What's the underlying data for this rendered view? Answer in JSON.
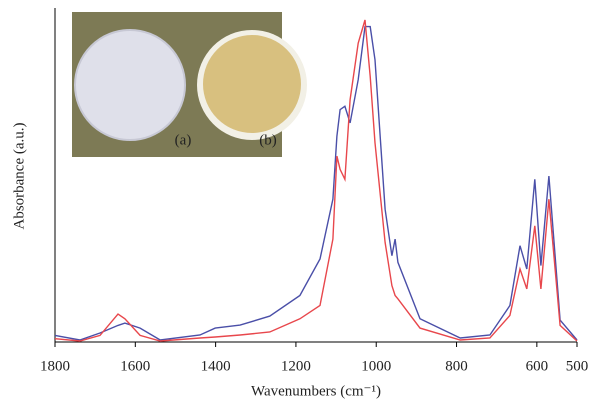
{
  "chart_data": {
    "type": "line",
    "y_label": "Absorbance (a.u.)",
    "x_label": "Wavenumbers (cm⁻¹)",
    "annotations": [
      "(a)",
      "(b)"
    ],
    "x": [
      1800,
      1738,
      1688,
      1643,
      1626,
      1588,
      1538,
      1439,
      1401,
      1339,
      1265,
      1190,
      1140,
      1108,
      1098,
      1090,
      1078,
      1065,
      1045,
      1028,
      1015,
      1003,
      978,
      961,
      953,
      946,
      891,
      791,
      717,
      667,
      642,
      625,
      605,
      590,
      570,
      542,
      500
    ],
    "series": [
      {
        "color": "#4a4fa8",
        "values": [
          0.02,
          0.006,
          0.027,
          0.05,
          0.057,
          0.042,
          0.006,
          0.021,
          0.042,
          0.051,
          0.078,
          0.14,
          0.25,
          0.43,
          0.62,
          0.7,
          0.71,
          0.66,
          0.79,
          0.95,
          0.95,
          0.85,
          0.4,
          0.26,
          0.31,
          0.24,
          0.07,
          0.012,
          0.021,
          0.11,
          0.29,
          0.22,
          0.49,
          0.23,
          0.5,
          0.066,
          0.006
        ]
      },
      {
        "color": "#e8474c",
        "values": [
          0.01,
          0.003,
          0.02,
          0.084,
          0.07,
          0.02,
          0.003,
          0.012,
          0.015,
          0.021,
          0.03,
          0.07,
          0.11,
          0.31,
          0.56,
          0.52,
          0.49,
          0.73,
          0.9,
          0.97,
          0.8,
          0.6,
          0.3,
          0.17,
          0.14,
          0.13,
          0.042,
          0.006,
          0.012,
          0.08,
          0.22,
          0.16,
          0.35,
          0.16,
          0.43,
          0.05,
          0.003
        ]
      }
    ],
    "xlim": [
      1800,
      500
    ],
    "xticks": [
      1800,
      1600,
      1400,
      1200,
      1000,
      800,
      600,
      500
    ],
    "ylim": [
      0,
      1
    ]
  }
}
